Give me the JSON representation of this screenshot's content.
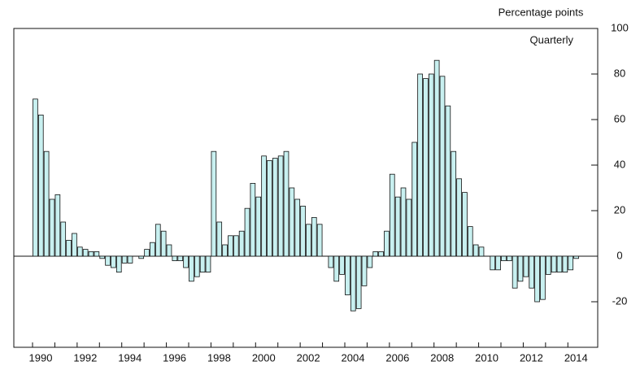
{
  "chart_data": {
    "type": "bar",
    "y_axis_label": "Percentage points",
    "annotation": "Quarterly",
    "categories": [
      "1990",
      null,
      null,
      null,
      null,
      null,
      null,
      null,
      "1992",
      null,
      null,
      null,
      null,
      null,
      null,
      null,
      "1994",
      null,
      null,
      null,
      null,
      null,
      null,
      null,
      "1996",
      null,
      null,
      null,
      null,
      null,
      null,
      null,
      "1998",
      null,
      null,
      null,
      null,
      null,
      null,
      null,
      "2000",
      null,
      null,
      null,
      null,
      null,
      null,
      null,
      "2002",
      null,
      null,
      null,
      null,
      null,
      null,
      null,
      "2004",
      null,
      null,
      null,
      null,
      null,
      null,
      null,
      "2006",
      null,
      null,
      null,
      null,
      null,
      null,
      null,
      "2008",
      null,
      null,
      null,
      null,
      null,
      null,
      null,
      "2010",
      null,
      null,
      null,
      null,
      null,
      null,
      null,
      "2012",
      null,
      null,
      null,
      null,
      null,
      null,
      null,
      "2014",
      null
    ],
    "values": [
      69,
      62,
      46,
      25,
      27,
      15,
      7,
      10,
      4,
      3,
      2,
      2,
      -1,
      -4,
      -5,
      -7,
      -3,
      -3,
      0,
      -1,
      3,
      6,
      14,
      11,
      5,
      -2,
      -2,
      -5,
      -11,
      -9,
      -7,
      -7,
      46,
      15,
      5,
      9,
      9,
      11,
      21,
      32,
      26,
      44,
      42,
      43,
      44,
      46,
      30,
      25,
      22,
      14,
      17,
      14,
      0,
      -5,
      -11,
      -8,
      -17,
      -24,
      -23,
      -13,
      -5,
      2,
      2,
      11,
      36,
      26,
      30,
      25,
      50,
      80,
      78,
      80,
      86,
      79,
      66,
      46,
      34,
      28,
      13,
      5,
      4,
      0,
      -6,
      -6,
      -2,
      -2,
      -14,
      -11,
      -9,
      -14,
      -20,
      -19,
      -8,
      -7,
      -7,
      -7,
      -6,
      -1
    ],
    "color": "#c8f0f0",
    "ylim": [
      -40,
      100
    ],
    "yticks": [
      -20,
      0,
      20,
      40,
      60,
      80,
      100
    ]
  }
}
